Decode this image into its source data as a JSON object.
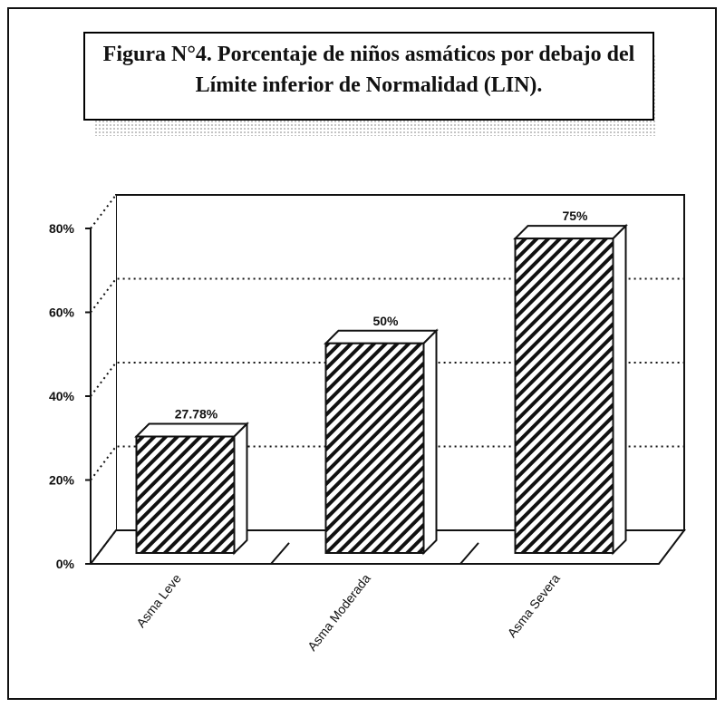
{
  "chart_data": {
    "type": "bar",
    "title": "Figura N°4. Porcentaje de niños asmáticos por debajo del Límite inferior de Normalidad (LIN).",
    "categories": [
      "Asma Leve",
      "Asma Moderada",
      "Asma Severa"
    ],
    "values": [
      27.78,
      50,
      75
    ],
    "value_labels": [
      "27.78%",
      "50%",
      "75%"
    ],
    "color": "#ffffff",
    "ylim": [
      0,
      80
    ],
    "yticks": [
      {
        "value": 0,
        "label": "0%"
      },
      {
        "value": 20,
        "label": "20%"
      },
      {
        "value": 40,
        "label": "40%"
      },
      {
        "value": 60,
        "label": "60%"
      },
      {
        "value": 80,
        "label": "80%"
      }
    ],
    "grid": true
  }
}
